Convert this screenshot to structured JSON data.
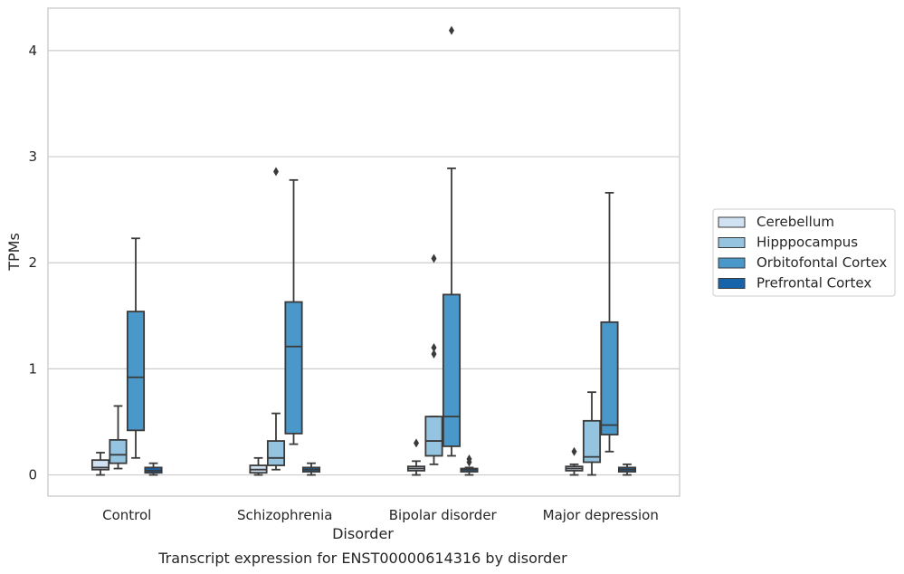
{
  "caption": "Transcript expression for ENST00000614316 by disorder",
  "chart_data": {
    "type": "box",
    "xlabel": "Disorder",
    "ylabel": "TPMs",
    "ylim": [
      -0.2,
      4.4
    ],
    "yticks": [
      0,
      1,
      2,
      3,
      4
    ],
    "grid": "horizontal",
    "legend_position": "right",
    "categories": [
      "Control",
      "Schizophrenia",
      "Bipolar disorder",
      "Major depression"
    ],
    "series": [
      {
        "name": "Cerebellum",
        "color": "#d0e1f2",
        "boxes": [
          {
            "whislo": 0.0,
            "q1": 0.05,
            "med": 0.07,
            "q3": 0.14,
            "whishi": 0.21,
            "fliers": []
          },
          {
            "whislo": 0.0,
            "q1": 0.02,
            "med": 0.05,
            "q3": 0.09,
            "whishi": 0.16,
            "fliers": []
          },
          {
            "whislo": 0.0,
            "q1": 0.04,
            "med": 0.06,
            "q3": 0.08,
            "whishi": 0.13,
            "fliers": [
              0.3
            ]
          },
          {
            "whislo": 0.0,
            "q1": 0.04,
            "med": 0.06,
            "q3": 0.08,
            "whishi": 0.1,
            "fliers": [
              0.22
            ]
          }
        ]
      },
      {
        "name": "Hipppocampus",
        "color": "#94c4df",
        "boxes": [
          {
            "whislo": 0.06,
            "q1": 0.11,
            "med": 0.19,
            "q3": 0.33,
            "whishi": 0.65,
            "fliers": []
          },
          {
            "whislo": 0.05,
            "q1": 0.09,
            "med": 0.16,
            "q3": 0.32,
            "whishi": 0.58,
            "fliers": [
              2.86
            ]
          },
          {
            "whislo": 0.1,
            "q1": 0.18,
            "med": 0.32,
            "q3": 0.55,
            "whishi": 0.55,
            "fliers": [
              1.14,
              1.2,
              2.04
            ]
          },
          {
            "whislo": 0.0,
            "q1": 0.12,
            "med": 0.17,
            "q3": 0.51,
            "whishi": 0.78,
            "fliers": []
          }
        ]
      },
      {
        "name": "Orbitofontal Cortex",
        "color": "#4a98c9",
        "boxes": [
          {
            "whislo": 0.16,
            "q1": 0.42,
            "med": 0.92,
            "q3": 1.54,
            "whishi": 2.23,
            "fliers": []
          },
          {
            "whislo": 0.29,
            "q1": 0.39,
            "med": 1.21,
            "q3": 1.63,
            "whishi": 2.78,
            "fliers": []
          },
          {
            "whislo": 0.18,
            "q1": 0.27,
            "med": 0.55,
            "q3": 1.7,
            "whishi": 2.89,
            "fliers": [
              4.19
            ]
          },
          {
            "whislo": 0.22,
            "q1": 0.38,
            "med": 0.47,
            "q3": 1.44,
            "whishi": 2.66,
            "fliers": []
          }
        ]
      },
      {
        "name": "Prefrontal Cortex",
        "color": "#1764ab",
        "boxes": [
          {
            "whislo": 0.0,
            "q1": 0.02,
            "med": 0.04,
            "q3": 0.07,
            "whishi": 0.11,
            "fliers": []
          },
          {
            "whislo": 0.0,
            "q1": 0.03,
            "med": 0.05,
            "q3": 0.07,
            "whishi": 0.11,
            "fliers": []
          },
          {
            "whislo": 0.0,
            "q1": 0.03,
            "med": 0.05,
            "q3": 0.06,
            "whishi": 0.07,
            "fliers": [
              0.12,
              0.15
            ]
          },
          {
            "whislo": 0.0,
            "q1": 0.03,
            "med": 0.05,
            "q3": 0.07,
            "whishi": 0.1,
            "fliers": []
          }
        ]
      }
    ]
  }
}
